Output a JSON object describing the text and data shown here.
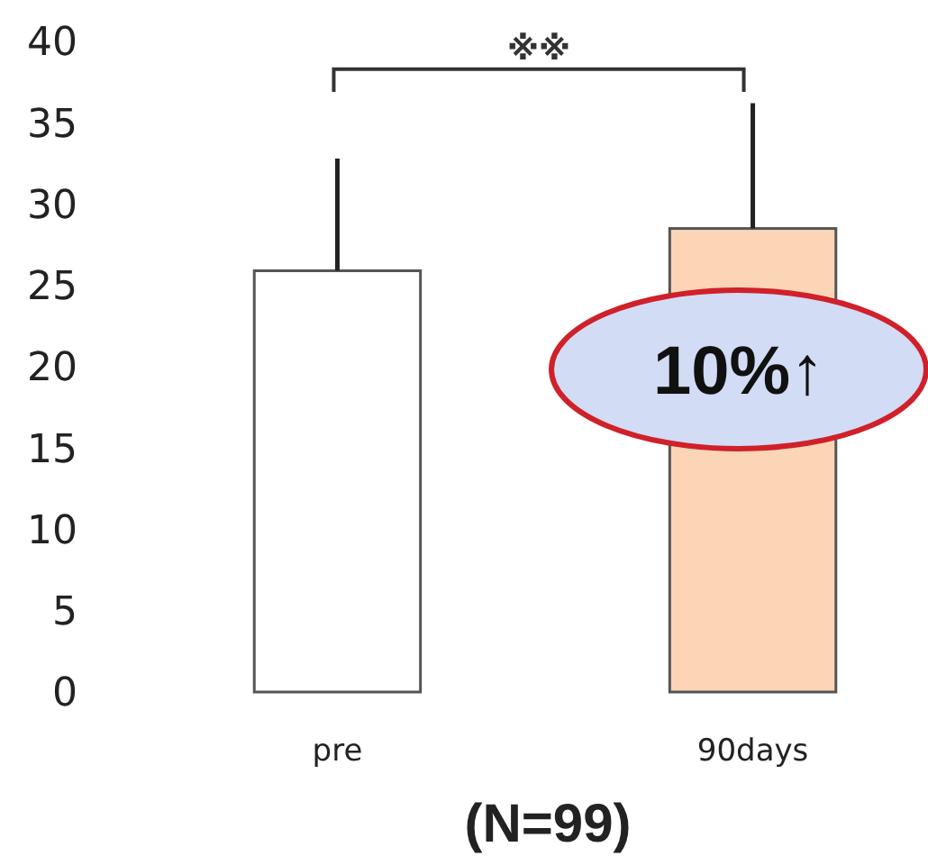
{
  "chart_data": {
    "type": "bar",
    "xlabel": "(N=99)",
    "categories": [
      "pre",
      "90days"
    ],
    "values": [
      25.9,
      28.5
    ],
    "colors": [
      "#ffffff",
      "#fbd5b5"
    ],
    "errors": [
      [
        25.9,
        32.8
      ],
      [
        28.5,
        36.2
      ]
    ],
    "ylim": [
      0,
      40
    ],
    "yticks": [
      0,
      5,
      10,
      15,
      20,
      25,
      30,
      35,
      40
    ],
    "grid": false,
    "annotations": [
      "※※",
      "10%↑"
    ]
  }
}
